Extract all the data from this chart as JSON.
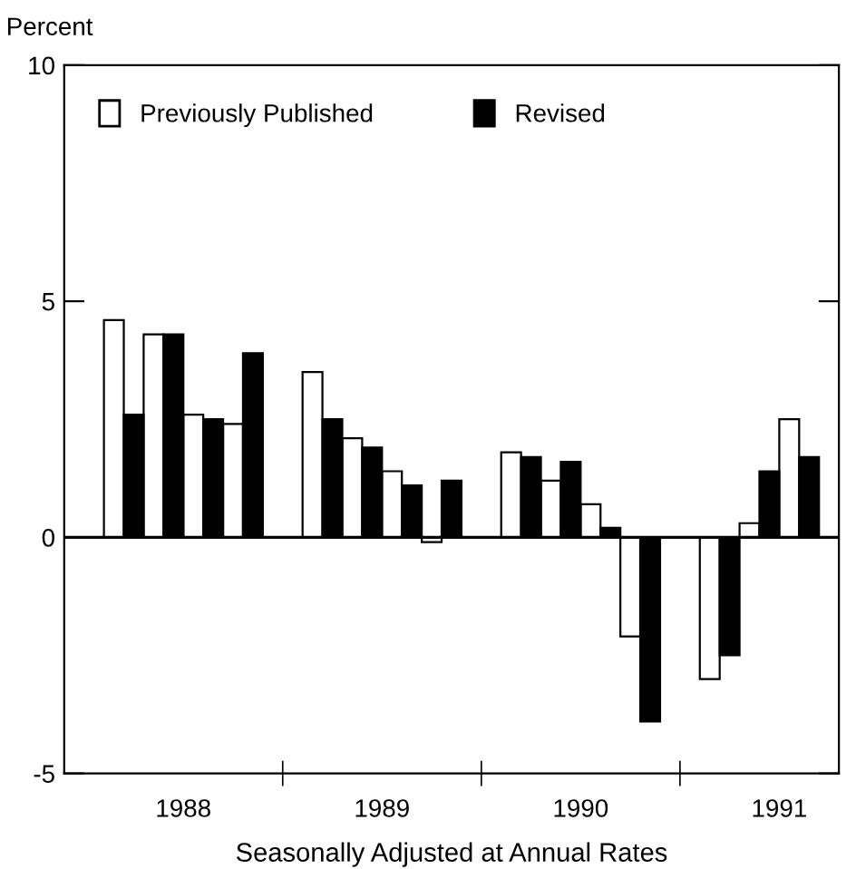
{
  "chart_data": {
    "type": "bar",
    "ylabel": "Percent",
    "xlabel": "Seasonally Adjusted at Annual Rates",
    "x": [
      1988.2,
      1988.4,
      1988.6,
      1988.8,
      1989.2,
      1989.4,
      1989.6,
      1989.8,
      1990.2,
      1990.4,
      1990.6,
      1990.8,
      1991.2,
      1991.4,
      1991.6
    ],
    "series": [
      {
        "name": "Previously Published",
        "color": "#ffffff",
        "values": [
          4.6,
          4.3,
          2.6,
          2.4,
          3.5,
          2.1,
          1.4,
          -0.1,
          1.8,
          1.2,
          0.7,
          -2.1,
          -3.0,
          0.3,
          2.5
        ]
      },
      {
        "name": "Revised",
        "color": "#000000",
        "values": [
          2.6,
          4.3,
          2.5,
          3.9,
          2.5,
          1.9,
          1.1,
          1.2,
          1.7,
          1.6,
          0.2,
          -3.9,
          -2.5,
          1.4,
          1.7
        ]
      }
    ],
    "xlim": [
      1987.9,
      1991.8
    ],
    "xticks": [
      {
        "value": 1988.5,
        "label": "1988"
      },
      {
        "value": 1989,
        "label": null
      },
      {
        "value": 1989.5,
        "label": "1989"
      },
      {
        "value": 1990,
        "label": null
      },
      {
        "value": 1990.5,
        "label": "1990"
      },
      {
        "value": 1991,
        "label": null
      },
      {
        "value": 1991.5,
        "label": "1991"
      }
    ],
    "ylim": [
      -5,
      10
    ],
    "yticks": [
      -5,
      0,
      5,
      10
    ],
    "ref_lines": [
      {
        "axis": "y",
        "value": 0,
        "color": "#000000"
      }
    ],
    "grid": false,
    "legend": "top left"
  }
}
